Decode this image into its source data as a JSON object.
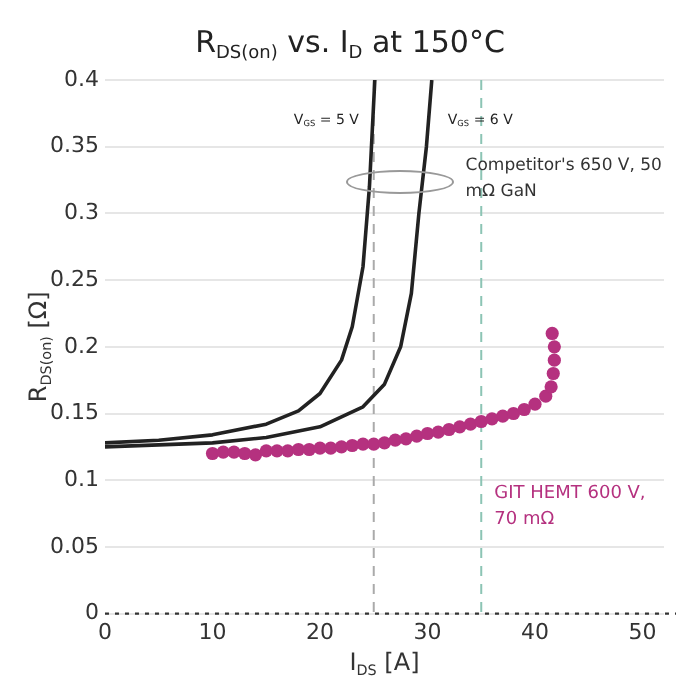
{
  "chart_data": {
    "type": "line",
    "title": "R$_{DS(on)}$ vs. I$_{D}$ at 150°C",
    "xlabel": "I$_{DS}$ [A]",
    "ylabel": "R$_{DS(on)}$ [Ω]",
    "xlim": [
      0,
      52
    ],
    "xticks": [
      0,
      10,
      20,
      30,
      40,
      50
    ],
    "ylim": [
      0,
      0.4
    ],
    "yticks": [
      0,
      0.05,
      0.1,
      0.15,
      0.2,
      0.25,
      0.3,
      0.35,
      0.4
    ],
    "grid": "y",
    "legend": false,
    "marker": "none",
    "line_style": "solid",
    "series": [
      {
        "name": "V$_{GS}$ = 5 V",
        "type": "line",
        "color": "#222222",
        "x": [
          0,
          5,
          10,
          15,
          18,
          20,
          22,
          23,
          24,
          24.6,
          25.1
        ],
        "values": [
          0.128,
          0.13,
          0.134,
          0.142,
          0.152,
          0.165,
          0.19,
          0.215,
          0.26,
          0.32,
          0.4
        ]
      },
      {
        "name": "V$_{GS}$ = 6 V",
        "type": "line",
        "color": "#222222",
        "x": [
          0,
          10,
          15,
          20,
          24,
          26,
          27.5,
          28.5,
          29.2,
          29.9,
          30.4
        ],
        "values": [
          0.125,
          0.128,
          0.132,
          0.14,
          0.155,
          0.172,
          0.2,
          0.24,
          0.3,
          0.35,
          0.4
        ]
      },
      {
        "name": "GIT HEMT 600 V, 70 mΩ",
        "type": "scatter",
        "marker": "circle",
        "color": "#b5317f",
        "x": [
          10,
          11,
          12,
          13,
          14,
          15,
          16,
          17,
          18,
          19,
          20,
          21,
          22,
          23,
          24,
          25,
          26,
          27,
          28,
          29,
          30,
          31,
          32,
          33,
          34,
          35,
          36,
          37,
          38,
          39,
          40,
          41,
          41.5,
          41.7,
          41.8,
          41.8,
          41.6
        ],
        "values": [
          0.12,
          0.121,
          0.121,
          0.12,
          0.119,
          0.122,
          0.122,
          0.122,
          0.123,
          0.123,
          0.124,
          0.124,
          0.125,
          0.126,
          0.127,
          0.127,
          0.128,
          0.13,
          0.131,
          0.133,
          0.135,
          0.136,
          0.138,
          0.14,
          0.142,
          0.144,
          0.146,
          0.148,
          0.15,
          0.153,
          0.157,
          0.163,
          0.17,
          0.18,
          0.19,
          0.2,
          0.21
        ]
      }
    ],
    "ref_lines": [
      {
        "axis": "x",
        "value": 25,
        "color": "#aaaaaa",
        "line_style": "dashed"
      },
      {
        "axis": "x",
        "value": 35,
        "color": "#8cc4b4",
        "line_style": "dashed"
      }
    ],
    "annotations": [
      "Competitor's 650 V, 50 mΩ GaN"
    ]
  }
}
